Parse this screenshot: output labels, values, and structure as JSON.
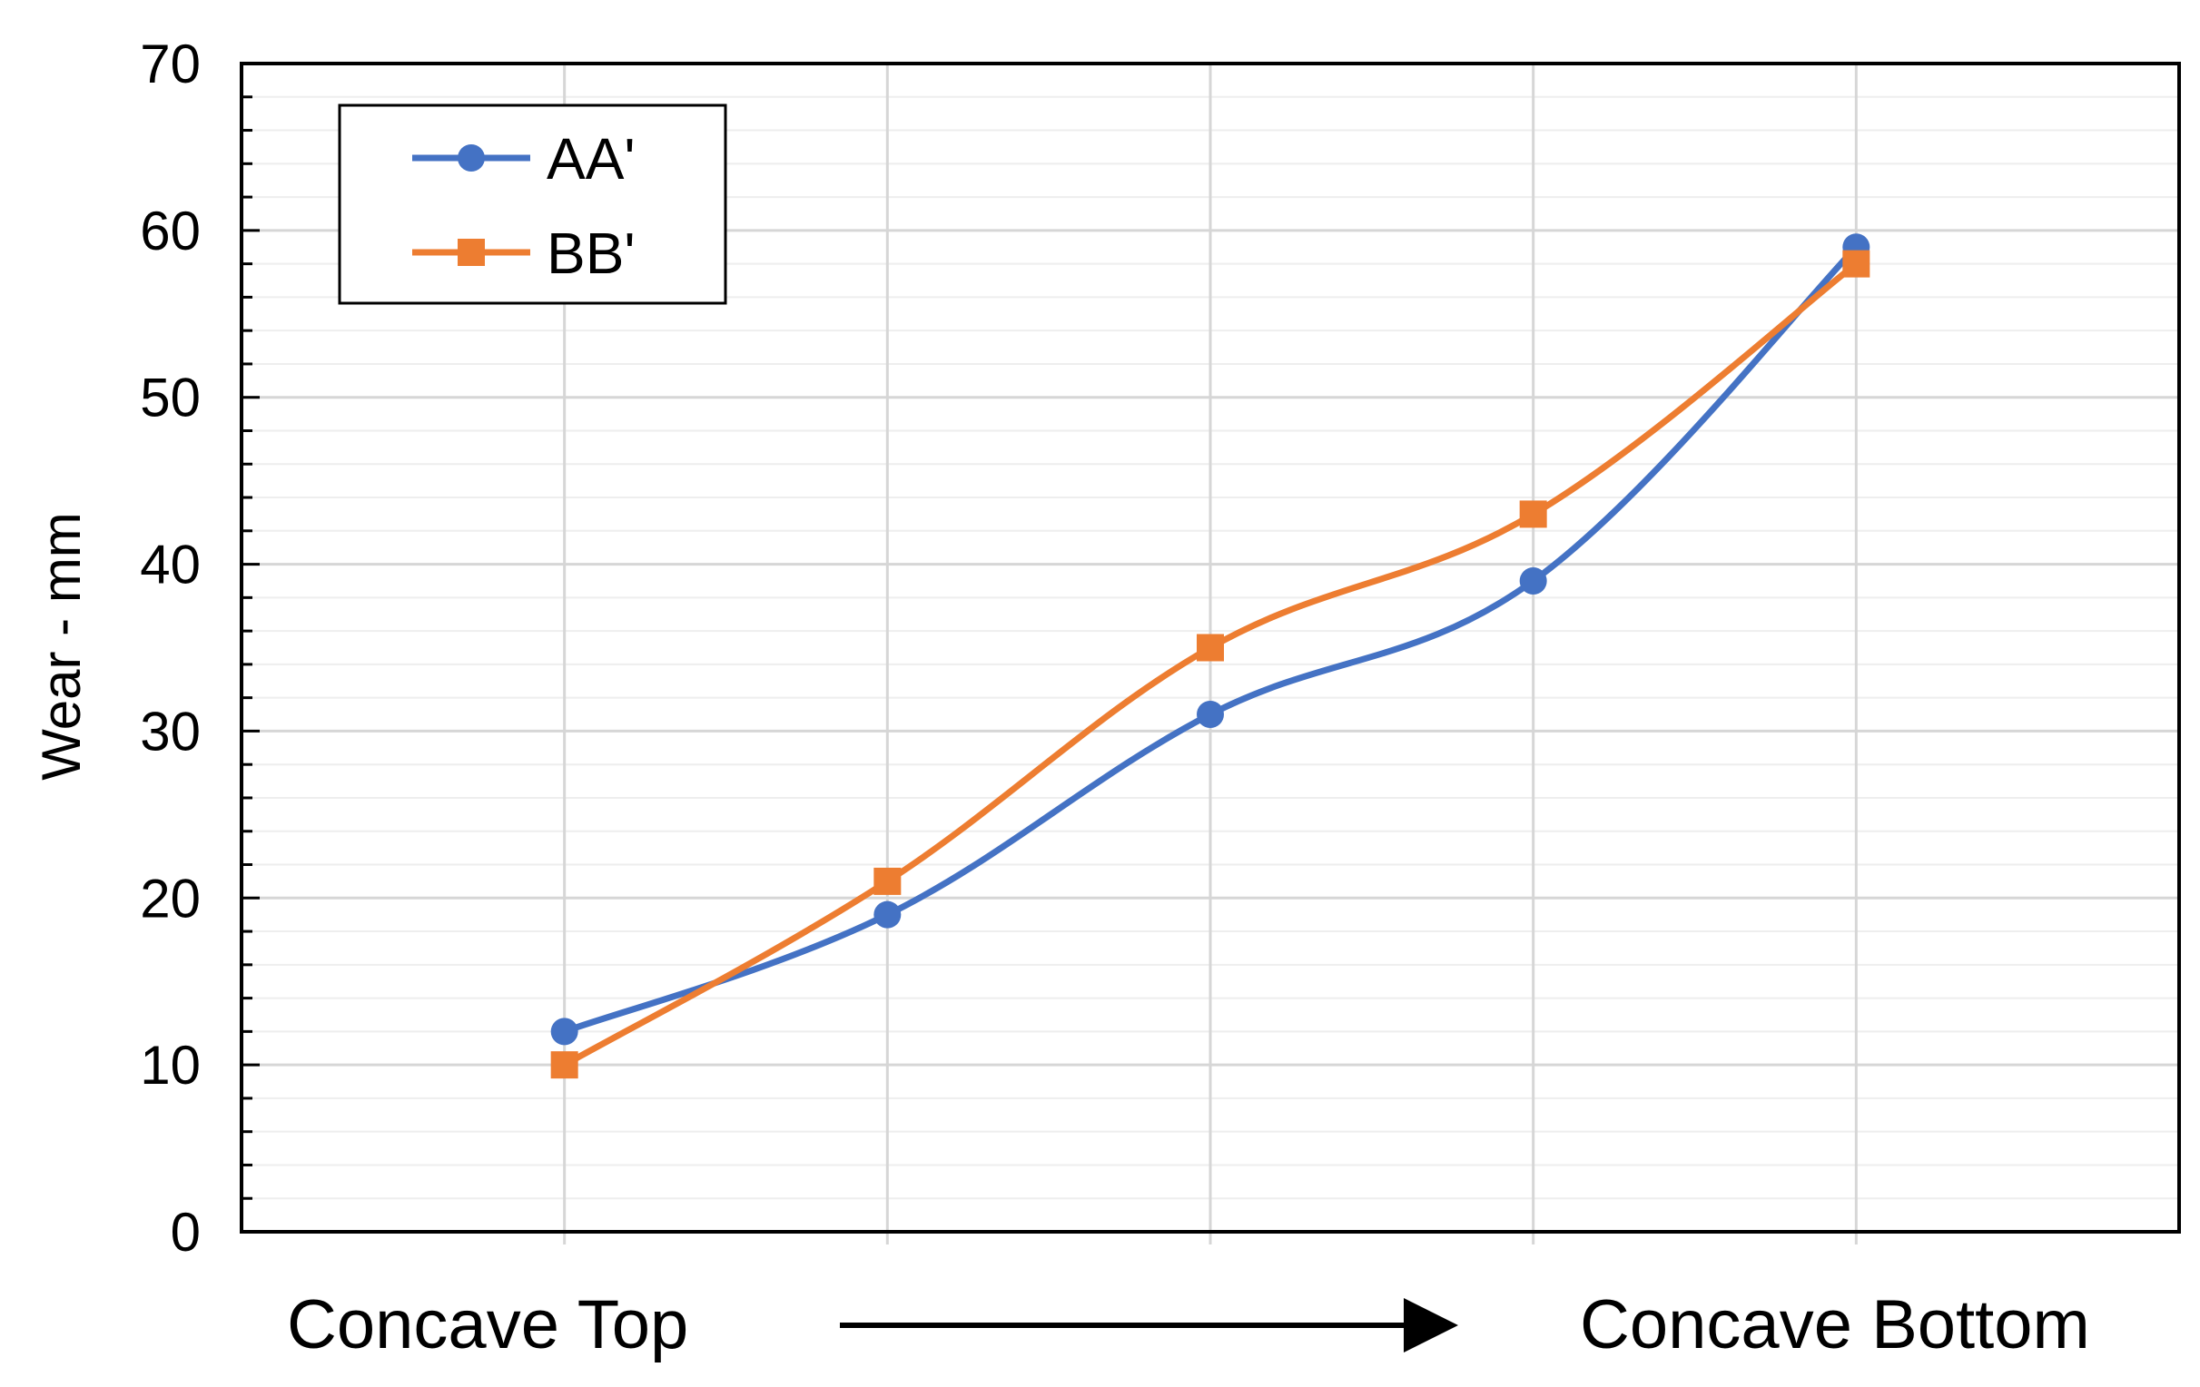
{
  "chart_data": {
    "type": "line",
    "x": [
      1,
      2,
      3,
      4,
      5
    ],
    "xlim": [
      0,
      6
    ],
    "ylabel": "Wear - mm",
    "ylim": [
      0,
      70
    ],
    "y_ticks": [
      "0",
      "10",
      "20",
      "30",
      "40",
      "50",
      "60",
      "70"
    ],
    "grid": true,
    "legend_position": "top-left",
    "smooth_lines": true,
    "series": [
      {
        "name": "AA'",
        "marker": "circle",
        "color": "#4472C4",
        "values": [
          12,
          19,
          31,
          39,
          59
        ]
      },
      {
        "name": "BB'",
        "marker": "square",
        "color": "#ED7D31",
        "values": [
          10,
          21,
          35,
          43,
          58
        ]
      }
    ],
    "x_annotation": {
      "left_label": "Concave Top",
      "right_label": "Concave Bottom",
      "arrow_direction": "right"
    }
  }
}
